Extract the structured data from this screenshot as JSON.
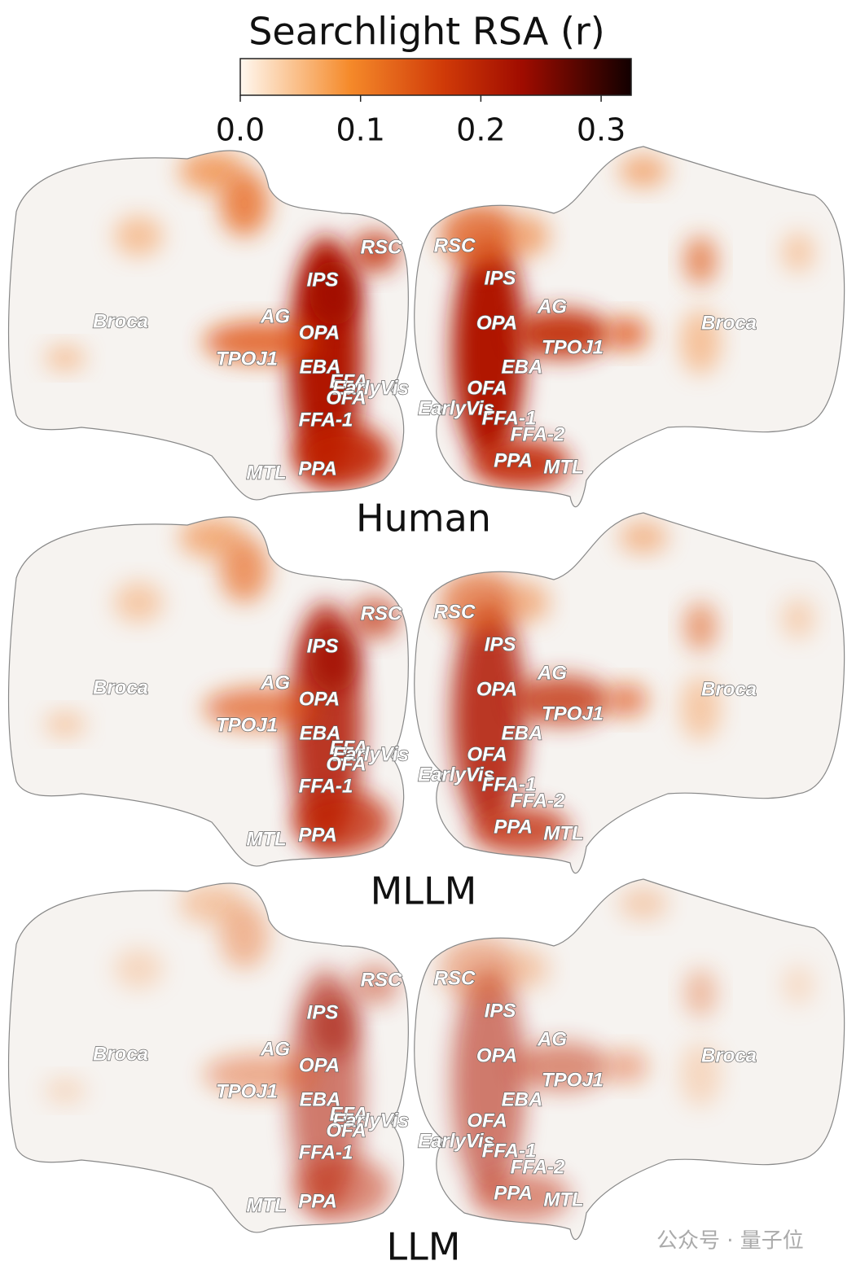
{
  "colorbar": {
    "title": "Searchlight RSA (r)",
    "range": [
      0,
      0.325
    ],
    "ticks": [
      {
        "value": 0,
        "label": "0.0"
      },
      {
        "value": 0.1,
        "label": "0.1"
      },
      {
        "value": 0.2,
        "label": "0.2"
      },
      {
        "value": 0.3,
        "label": "0.3"
      }
    ]
  },
  "roi_labels": [
    "RSC",
    "IPS",
    "AG",
    "OPA",
    "Broca",
    "TPOJ1",
    "EBA",
    "EFA",
    "EarlyVis",
    "OFA",
    "FFA-1",
    "MTL",
    "PPA",
    "RSC",
    "IPS",
    "AG",
    "OPA",
    "TPOJ1",
    "EBA",
    "OFA",
    "EarlyVis",
    "FFA-1",
    "FFA-2",
    "PPA",
    "MTL",
    "Broca"
  ],
  "panels": [
    {
      "label": "Human"
    },
    {
      "label": "MLLM"
    },
    {
      "label": "LLM"
    }
  ],
  "watermark": "公众号 · 量子位"
}
